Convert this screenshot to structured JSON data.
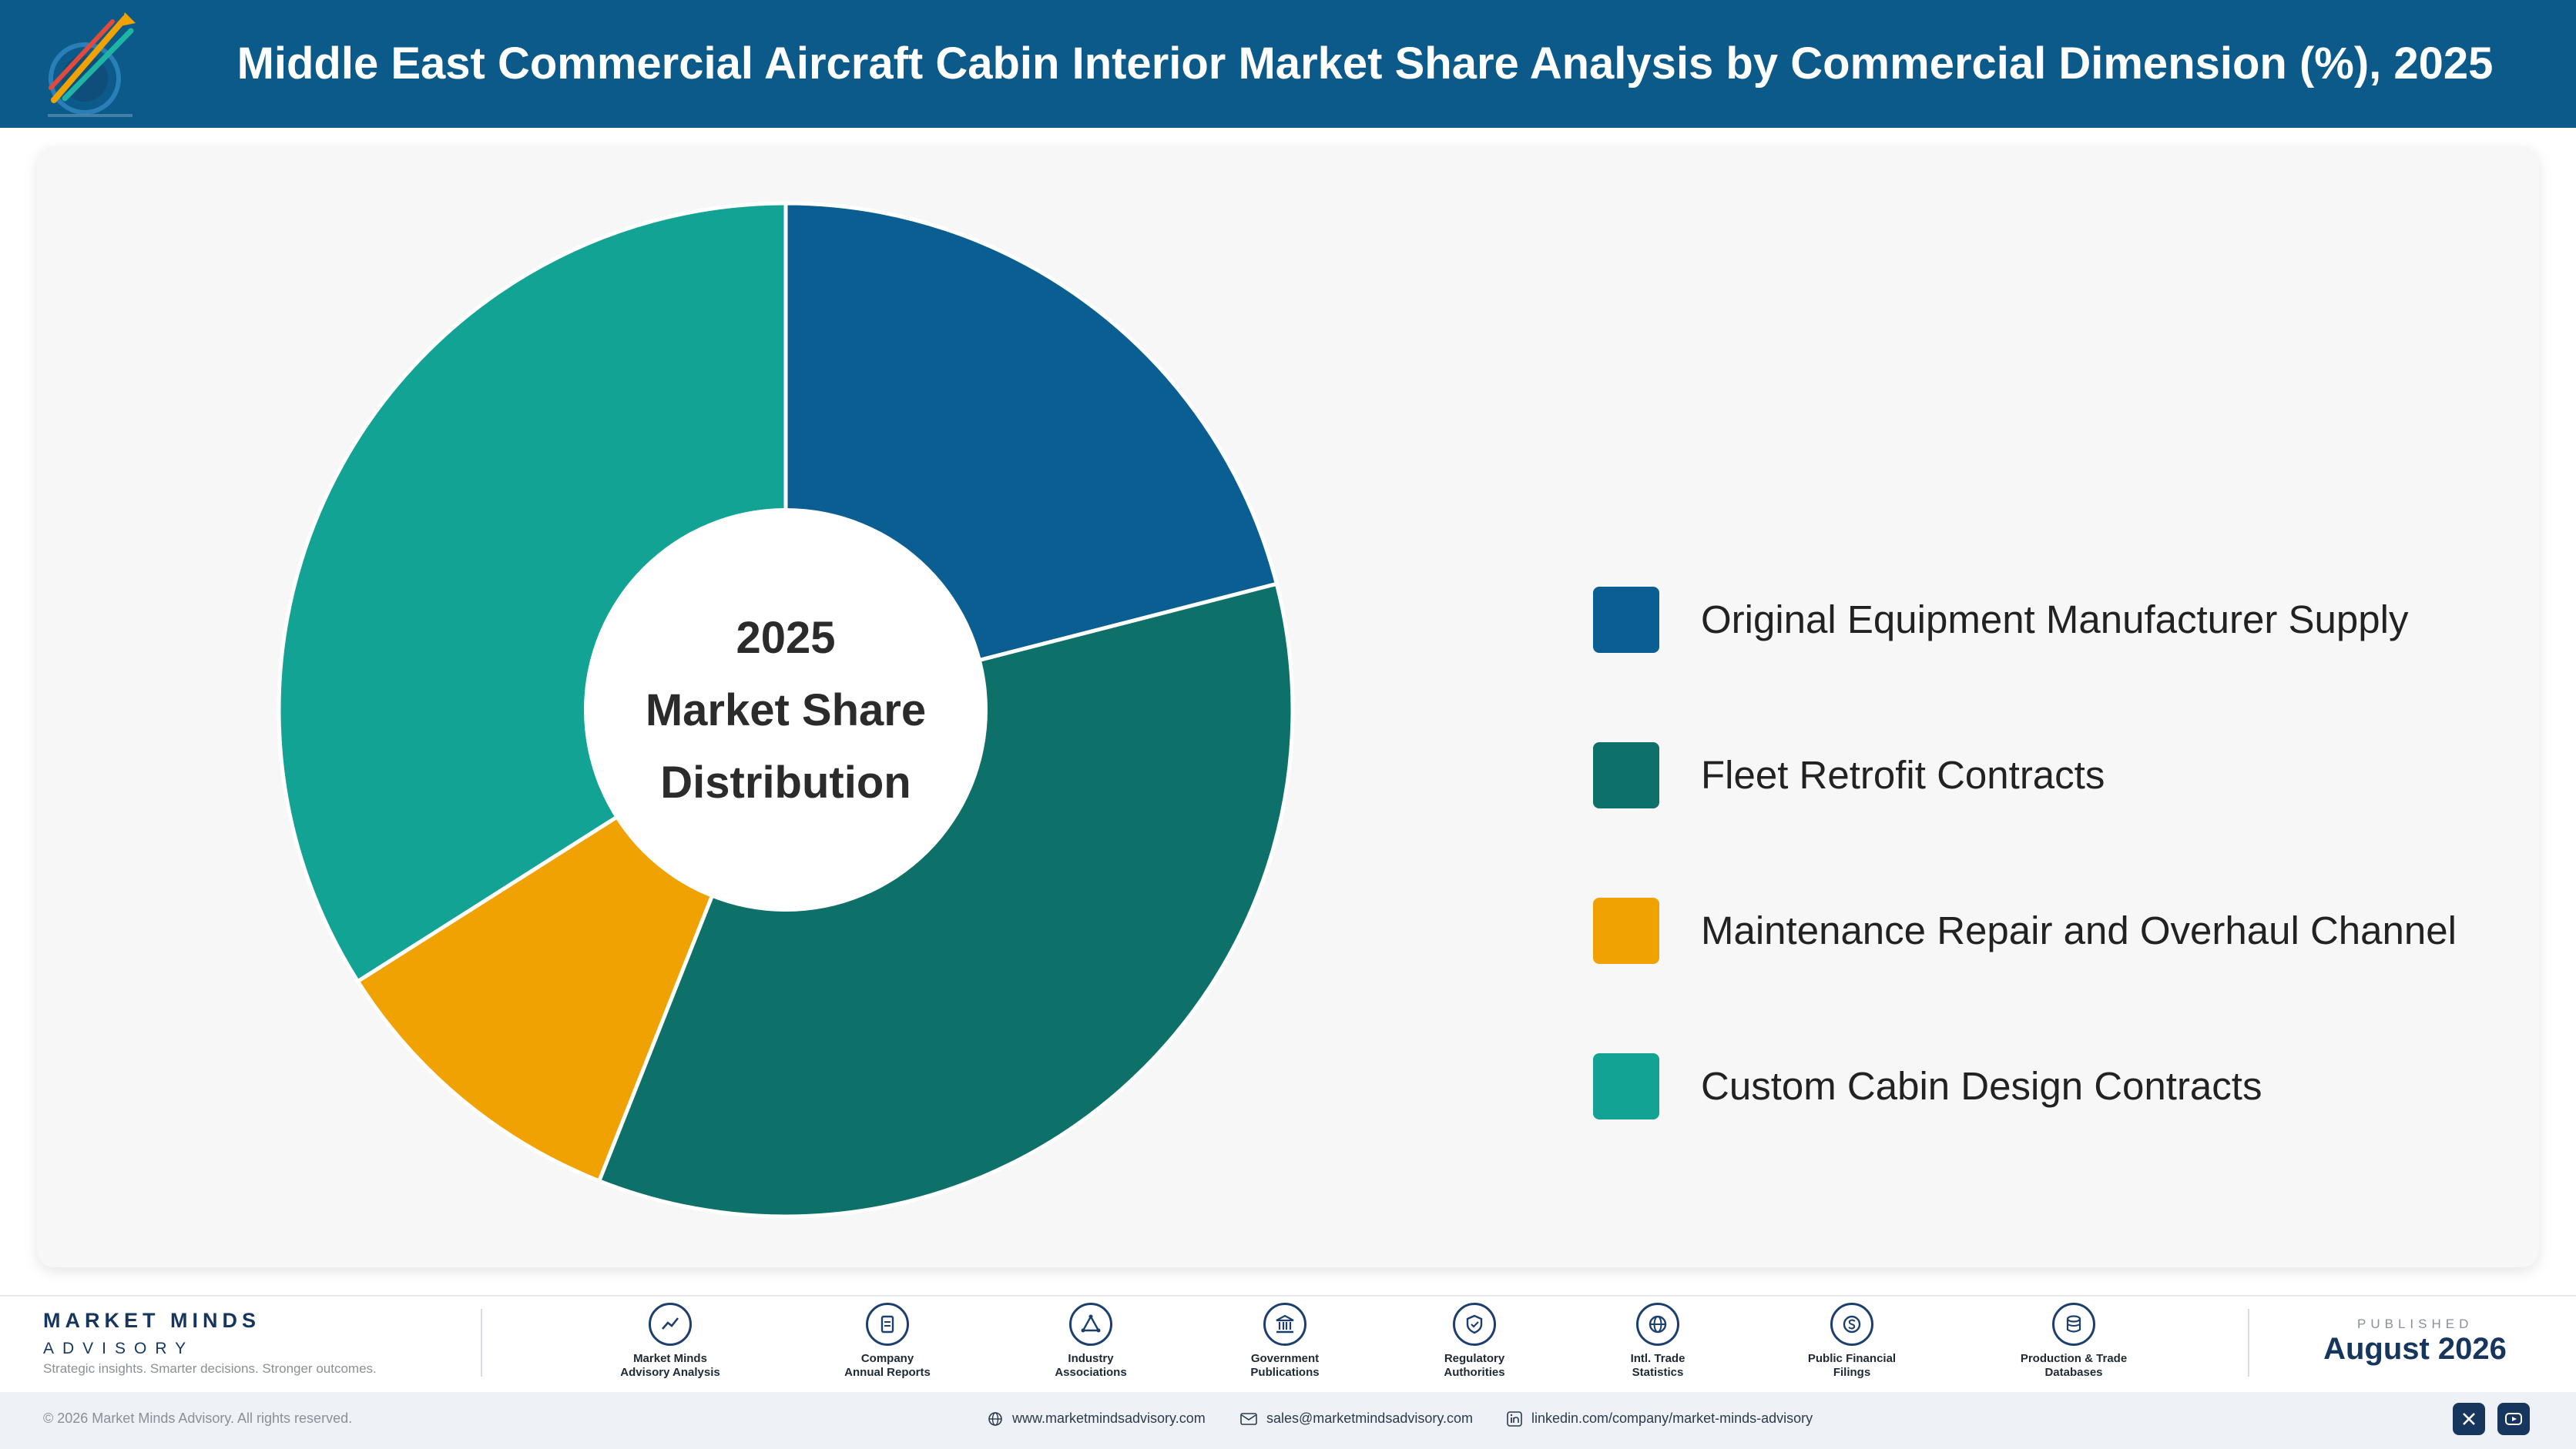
{
  "header": {
    "title": "Middle East Commercial Aircraft Cabin Interior Market Share Analysis by Commercial Dimension (%), 2025"
  },
  "chart_data": {
    "type": "pie",
    "style": "donut",
    "title": "Middle East Commercial Aircraft Cabin Interior Market Share Analysis by Commercial Dimension (%), 2025",
    "center_label": [
      "2025",
      "Market Share",
      "Distribution"
    ],
    "categories": [
      "Original Equipment Manufacturer Supply",
      "Fleet Retrofit Contracts",
      "Maintenance Repair and Overhaul Channel",
      "Custom Cabin Design Contracts"
    ],
    "values": [
      21,
      35,
      10,
      34
    ],
    "colors": [
      "#0b5e91",
      "#0e7169",
      "#f0a202",
      "#13a394"
    ],
    "legend_position": "right",
    "start_angle": "top",
    "direction": "clockwise"
  },
  "footer": {
    "brand_name": "MARKET MINDS",
    "brand_sub": "ADVISORY",
    "tagline": "Strategic insights. Smarter decisions. Stronger outcomes.",
    "sources": [
      {
        "label1": "Market Minds",
        "label2": "Advisory Analysis",
        "icon": "trend-chart-icon"
      },
      {
        "label1": "Company",
        "label2": "Annual Reports",
        "icon": "document-icon"
      },
      {
        "label1": "Industry",
        "label2": "Associations",
        "icon": "network-icon"
      },
      {
        "label1": "Government",
        "label2": "Publications",
        "icon": "government-building-icon"
      },
      {
        "label1": "Regulatory",
        "label2": "Authorities",
        "icon": "shield-check-icon"
      },
      {
        "label1": "Intl. Trade",
        "label2": "Statistics",
        "icon": "globe-icon"
      },
      {
        "label1": "Public Financial",
        "label2": "Filings",
        "icon": "dollar-coin-icon"
      },
      {
        "label1": "Production & Trade",
        "label2": "Databases",
        "icon": "database-icon"
      }
    ],
    "published_label": "PUBLISHED",
    "published_date": "August 2026",
    "copyright": "© 2026 Market Minds Advisory. All rights reserved.",
    "website": "www.marketmindsadvisory.com",
    "email": "sales@marketmindsadvisory.com",
    "linkedin": "linkedin.com/company/market-minds-advisory"
  }
}
